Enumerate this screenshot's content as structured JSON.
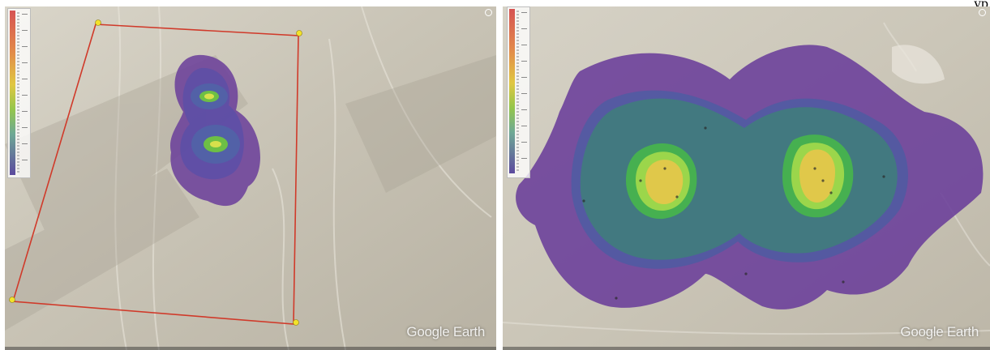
{
  "left_panel": {
    "watermark": "Google Earth",
    "legend_icon": "color-scale-legend"
  },
  "right_panel": {
    "watermark": "Google Earth",
    "legend_icon": "color-scale-legend"
  },
  "top_right_text": "yp",
  "colors": {
    "boundary": "#d03a2a",
    "pin": "#f2e22a",
    "contour_outer": "#6a3d9a",
    "contour_teal": "#3f7f7a",
    "contour_green": "#47b34d",
    "contour_light_green": "#9bd64b",
    "contour_yellow": "#e0c84a"
  }
}
